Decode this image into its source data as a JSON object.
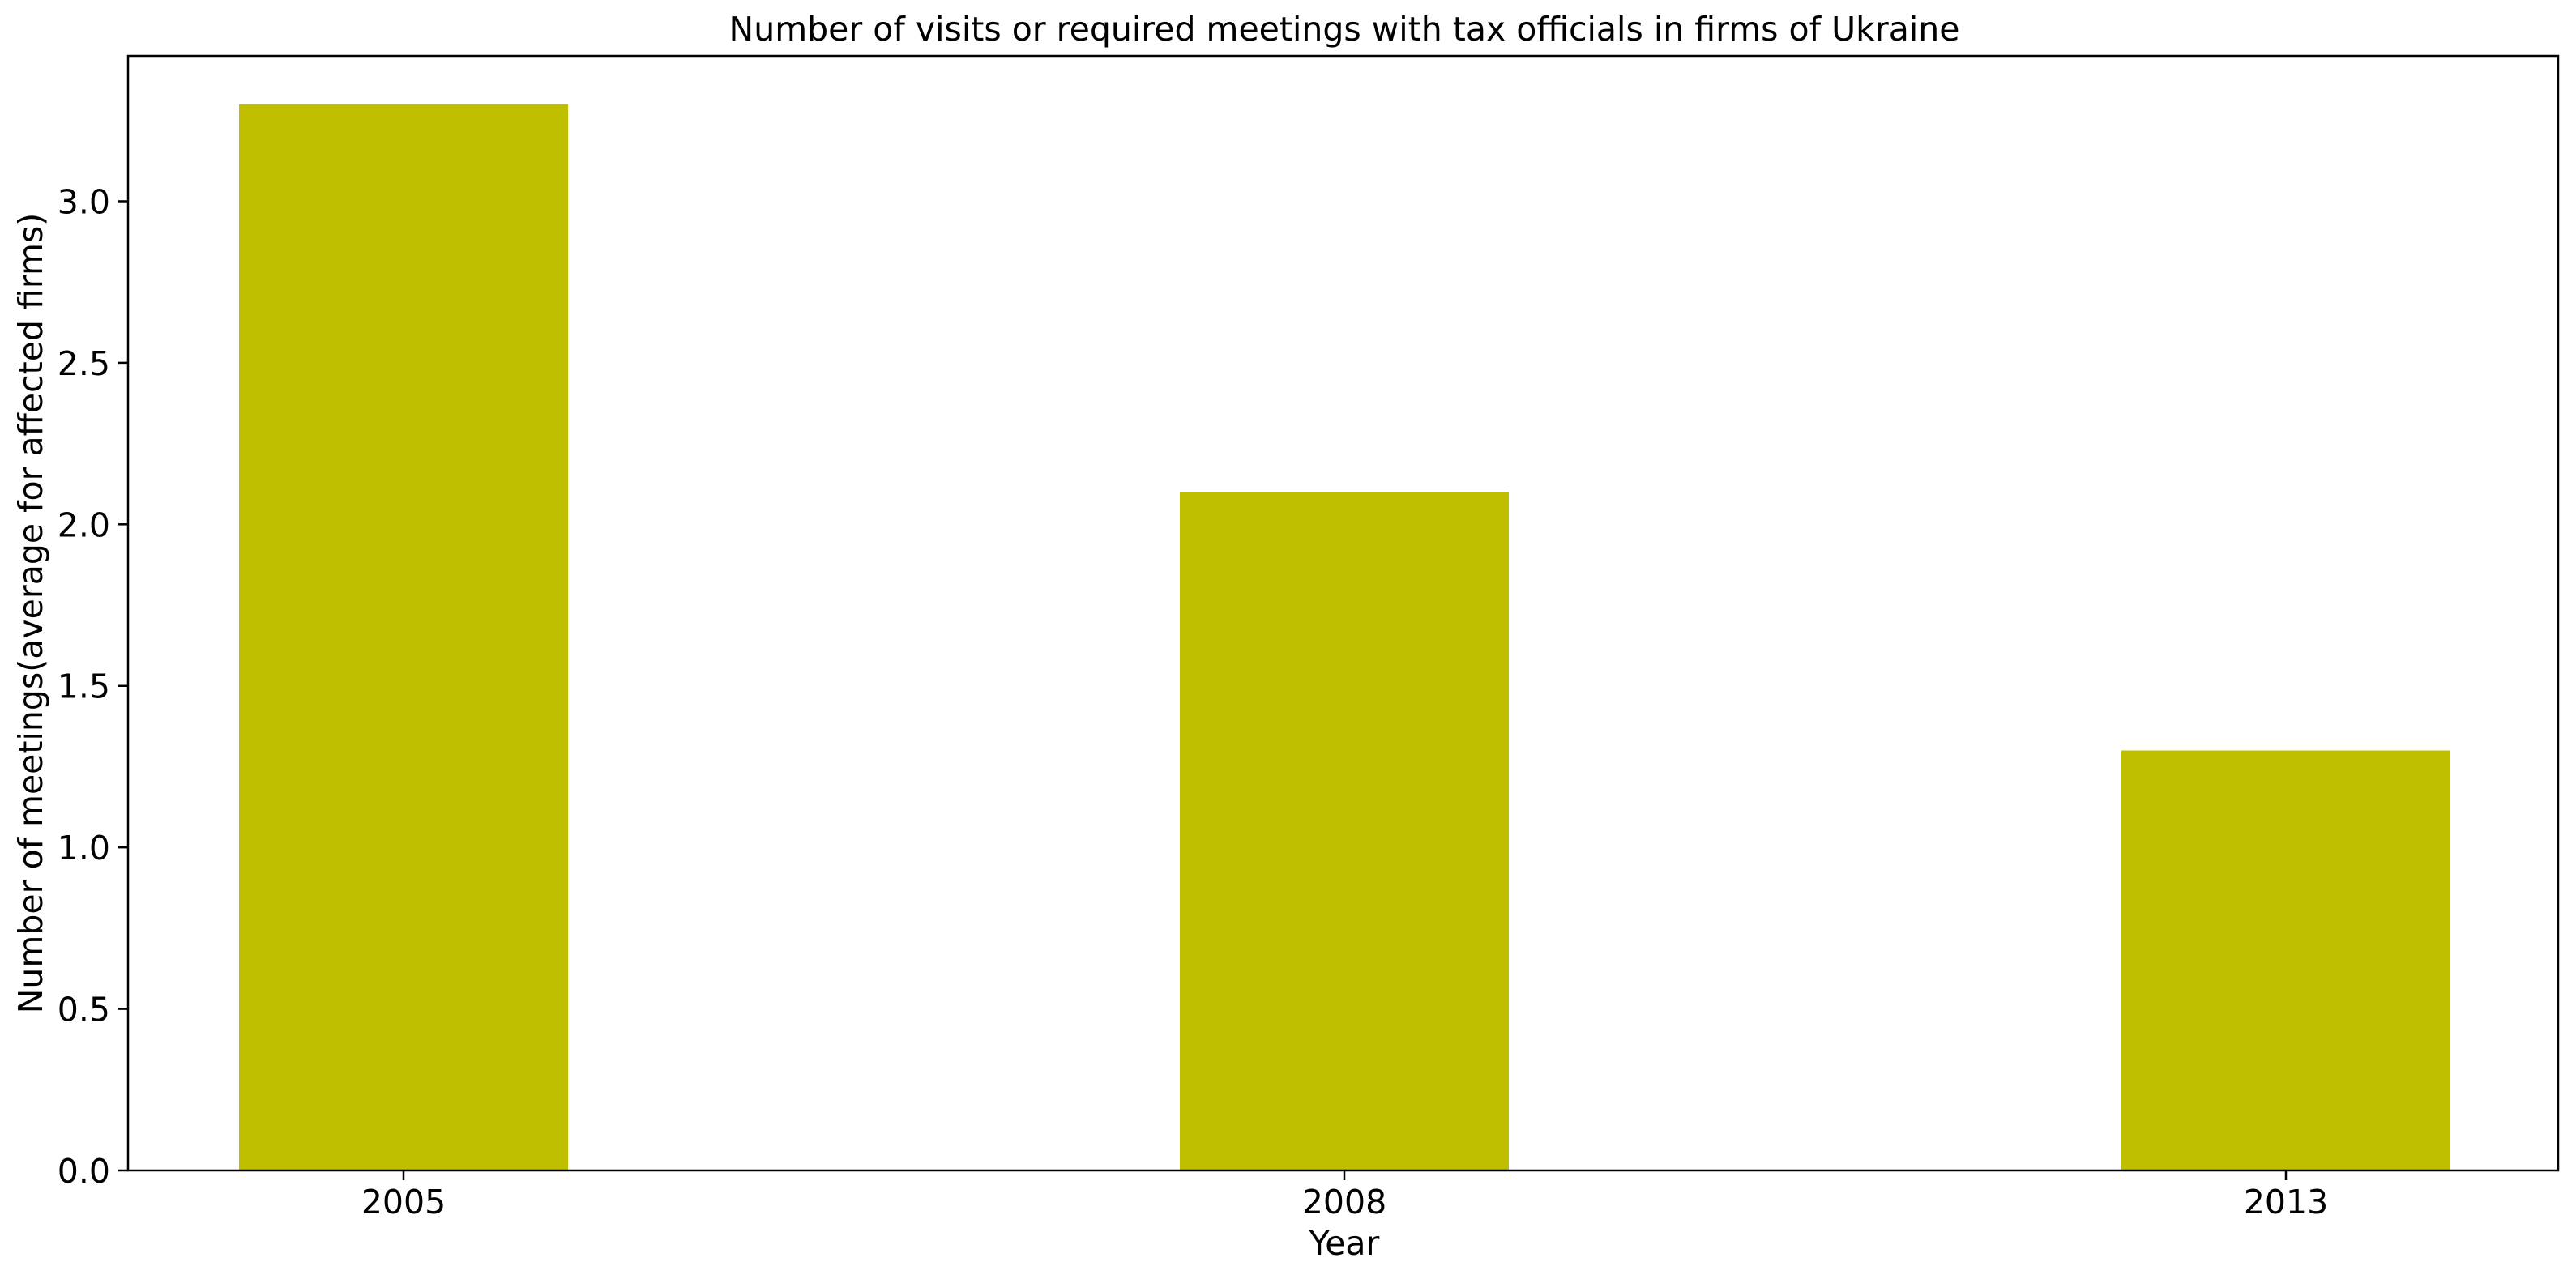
{
  "chart_data": {
    "type": "bar",
    "title": "Number of visits or required meetings with tax officials in firms of Ukraine",
    "xlabel": "Year",
    "ylabel": "Number of meetings(average for affected firms)",
    "categories": [
      "2005",
      "2008",
      "2013"
    ],
    "values": [
      3.3,
      2.1,
      1.3
    ],
    "ylim": [
      0,
      3.45
    ],
    "yticks": [
      "0.0",
      "0.5",
      "1.0",
      "1.5",
      "2.0",
      "2.5",
      "3.0"
    ],
    "bar_color": "#bfbf00",
    "grid": false,
    "legend": "none"
  }
}
